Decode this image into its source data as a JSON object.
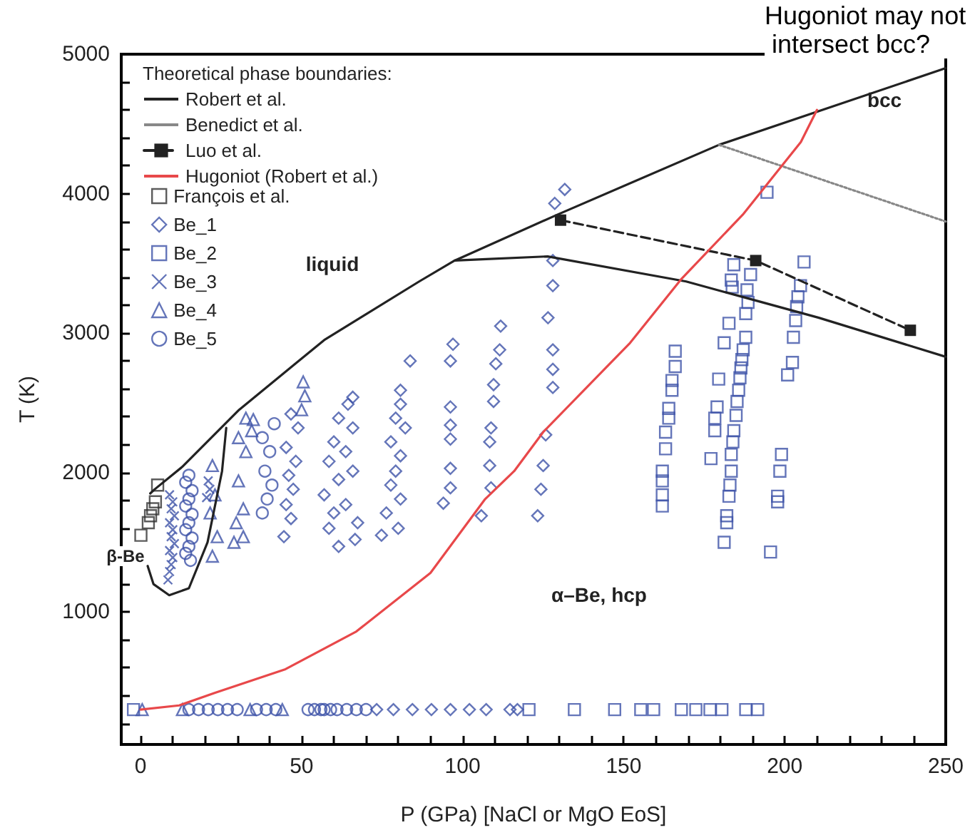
{
  "chart_data": {
    "type": "scatter",
    "xlabel": "P (GPa) [NaCl or MgO EoS]",
    "ylabel": "T (K)",
    "legend_title": "Theoretical phase boundaries:",
    "legend": "top left",
    "grid": false,
    "xlim": [
      -6,
      250
    ],
    "ylim": [
      50,
      5000
    ],
    "xticks": [
      0,
      {
        "value": 10,
        "label": null
      },
      {
        "value": 20,
        "label": null
      },
      {
        "value": 30,
        "label": null
      },
      {
        "value": 40,
        "label": null
      },
      50,
      {
        "value": 60,
        "label": null
      },
      {
        "value": 70,
        "label": null
      },
      {
        "value": 80,
        "label": null
      },
      {
        "value": 90,
        "label": null
      },
      100,
      {
        "value": 110,
        "label": null
      },
      {
        "value": 120,
        "label": null
      },
      {
        "value": 130,
        "label": null
      },
      {
        "value": 140,
        "label": null
      },
      150,
      {
        "value": 160,
        "label": null
      },
      {
        "value": 170,
        "label": null
      },
      {
        "value": 180,
        "label": null
      },
      {
        "value": 190,
        "label": null
      },
      200,
      {
        "value": 210,
        "label": null
      },
      {
        "value": 220,
        "label": null
      },
      {
        "value": 230,
        "label": null
      },
      {
        "value": 240,
        "label": null
      },
      250
    ],
    "yticks": [
      {
        "value": 200,
        "label": null
      },
      {
        "value": 400,
        "label": null
      },
      {
        "value": 600,
        "label": null
      },
      {
        "value": 800,
        "label": null
      },
      1000,
      {
        "value": 1200,
        "label": null
      },
      {
        "value": 1400,
        "label": null
      },
      {
        "value": 1600,
        "label": null
      },
      {
        "value": 1800,
        "label": null
      },
      2000,
      {
        "value": 2200,
        "label": null
      },
      {
        "value": 2400,
        "label": null
      },
      {
        "value": 2600,
        "label": null
      },
      {
        "value": 2800,
        "label": null
      },
      3000,
      {
        "value": 3200,
        "label": null
      },
      {
        "value": 3400,
        "label": null
      },
      {
        "value": 3600,
        "label": null
      },
      {
        "value": 3800,
        "label": null
      },
      4000,
      {
        "value": 4200,
        "label": null
      },
      {
        "value": 4400,
        "label": null
      },
      {
        "value": 4600,
        "label": null
      },
      {
        "value": 4800,
        "label": null
      },
      5000
    ],
    "annotations": [
      "liquid",
      "bcc",
      "α–Be, hcp",
      "β-Be",
      "Hugoniot may not intersect bcc?"
    ],
    "series": [
      {
        "name": "Robert et al.",
        "type": "line",
        "color": "#222222",
        "line_style": "solid",
        "marker": "none",
        "x": [
          3,
          4.4,
          12.9,
          30.6,
          57,
          86.5,
          97.5,
          129.5,
          179.6,
          250
        ],
        "values": [
          1850,
          1880,
          2040,
          2450,
          2950,
          3370,
          3520,
          3850,
          4350,
          4900
        ]
      },
      {
        "type": "line",
        "color": "#222222",
        "line_style": "solid",
        "marker": "none",
        "x": [
          97.5,
          107.3,
          126.4,
          169.4,
          210.6,
          250
        ],
        "values": [
          3520,
          3530,
          3550,
          3370,
          3110,
          2830
        ]
      },
      {
        "type": "line",
        "color": "#222222",
        "line_style": "solid",
        "marker": "none",
        "x": [
          26.6,
          25.3,
          20.8,
          15,
          8.9,
          4,
          2.2
        ],
        "values": [
          2320,
          2010,
          1500,
          1170,
          1120,
          1200,
          1330
        ]
      },
      {
        "name": "Benedict et al.",
        "type": "line",
        "color": "#888888",
        "line_style": "dotted",
        "marker": "none",
        "x": [
          179.6,
          250
        ],
        "values": [
          4350,
          3800
        ]
      },
      {
        "name": "Luo et al.",
        "type": "line",
        "color": "#222222",
        "line_style": "dashed",
        "marker": "square",
        "x": [
          130.4,
          191,
          239
        ],
        "values": [
          3810,
          3520,
          3020
        ]
      },
      {
        "name": "Hugoniot (Robert et al.)",
        "type": "line",
        "color": "#e8484a",
        "line_style": "solid",
        "marker": "none",
        "x": [
          0,
          12,
          23,
          45,
          67,
          90,
          107,
          116,
          125,
          152,
          168,
          187,
          205,
          210
        ],
        "values": [
          300,
          330,
          420,
          590,
          860,
          1280,
          1810,
          2010,
          2290,
          2930,
          3390,
          3850,
          4370,
          4600
        ]
      },
      {
        "name": "François et al.",
        "color": "#333333",
        "marker": "square",
        "x": [
          5.3,
          4.6,
          3.8,
          3.1,
          2.4,
          0.1
        ],
        "values": [
          1910,
          1790,
          1740,
          1690,
          1640,
          1550
        ]
      },
      {
        "name": "Be_1",
        "color": "#3d52a8",
        "marker": "diamond",
        "x": [
          131.7,
          128.6,
          128,
          128,
          126.5,
          128,
          128,
          128,
          125.8,
          125,
          124.3,
          123.3,
          111.8,
          111.5,
          110.3,
          109.6,
          109.6,
          108.8,
          108.4,
          108.4,
          108.8,
          105.8,
          97,
          96.2,
          96.2,
          96.2,
          96.2,
          96.2,
          96.2,
          94,
          83.7,
          80.7,
          80.7,
          79.2,
          82.2,
          77.7,
          80.7,
          79.2,
          77.7,
          80.7,
          76.3,
          80,
          74.8,
          64.4,
          61.5,
          65.9,
          60,
          63.7,
          58.5,
          65.9,
          61.5,
          57,
          63.7,
          60,
          67.4,
          58.5,
          61.5,
          66.6,
          65.9,
          46.7,
          48.9,
          45.2,
          48.2,
          46,
          47.4,
          45.2,
          46.7,
          44.5,
          73.3,
          78.5,
          84.4,
          90.3,
          96.2,
          102.1,
          107.3,
          114.7,
          117
        ],
        "values": [
          4030,
          3930,
          3520,
          3340,
          3110,
          2880,
          2740,
          2610,
          2270,
          2050,
          1880,
          1690,
          3050,
          2880,
          2780,
          2630,
          2510,
          2320,
          2220,
          2050,
          1890,
          1690,
          2920,
          2800,
          2470,
          2340,
          2240,
          2030,
          1890,
          1780,
          2800,
          2590,
          2490,
          2390,
          2320,
          2220,
          2120,
          2010,
          1910,
          1810,
          1710,
          1600,
          1550,
          2490,
          2390,
          2320,
          2220,
          2150,
          2080,
          2010,
          1950,
          1840,
          1770,
          1710,
          1640,
          1600,
          1470,
          1520,
          2540,
          2420,
          2320,
          2180,
          2080,
          1980,
          1880,
          1770,
          1670,
          1540,
          300,
          300,
          300,
          300,
          300,
          300,
          300,
          300,
          300
        ]
      },
      {
        "name": "Be_2",
        "color": "#3d52a8",
        "marker": "square",
        "x": [
          166,
          166,
          165,
          165,
          164,
          164,
          163,
          163,
          162,
          162,
          162,
          162,
          184.2,
          183.4,
          183.7,
          189.4,
          188.3,
          188.6,
          187.9,
          182.7,
          181.2,
          187.9,
          187.1,
          186.7,
          186.4,
          186.1,
          185.7,
          185.2,
          184.9,
          184.2,
          183.9,
          183.4,
          183.4,
          183,
          182.7,
          182,
          182,
          181.2,
          179.5,
          179,
          178.3,
          178.3,
          177.1,
          194.5,
          195.6,
          206,
          204.9,
          204.1,
          203.7,
          203.4,
          202.7,
          202.4,
          200.9,
          199,
          198.5,
          197.8,
          197.8,
          -2.2,
          120.6,
          134.7,
          147.2,
          155.3,
          159.3,
          167.9,
          172.4,
          176.8,
          180.5,
          187.9,
          191.6
        ],
        "values": [
          2870,
          2760,
          2660,
          2590,
          2460,
          2390,
          2290,
          2170,
          2010,
          1940,
          1840,
          1760,
          3490,
          3380,
          3330,
          3420,
          3310,
          3220,
          3140,
          3070,
          2930,
          2970,
          2880,
          2810,
          2750,
          2680,
          2590,
          2510,
          2410,
          2300,
          2220,
          2130,
          2010,
          1910,
          1830,
          1690,
          1640,
          1500,
          2670,
          2470,
          2390,
          2300,
          2100,
          4010,
          1430,
          3510,
          3340,
          3260,
          3190,
          3090,
          2970,
          2790,
          2700,
          2130,
          2010,
          1830,
          1790,
          300,
          300,
          300,
          300,
          300,
          300,
          300,
          300,
          300,
          300,
          300,
          300
        ]
      },
      {
        "name": "Be_3",
        "color": "#3d52a8",
        "marker": "cross",
        "x": [
          9,
          10,
          9.5,
          10.5,
          9,
          10,
          9.5,
          10.5,
          9,
          10,
          9.5,
          9,
          8.5,
          21,
          21.5,
          20.5
        ],
        "values": [
          1840,
          1790,
          1740,
          1690,
          1640,
          1590,
          1540,
          1490,
          1440,
          1390,
          1340,
          1290,
          1230,
          1940,
          1880,
          1820
        ]
      },
      {
        "name": "Be_4",
        "color": "#3d52a8",
        "marker": "triangle",
        "x": [
          32.7,
          30.4,
          32.7,
          30.4,
          31.9,
          29.7,
          29,
          31.9,
          22.3,
          23.1,
          21.6,
          23.8,
          22.3,
          50.5,
          51,
          50,
          35,
          34.5,
          0.5,
          13,
          34,
          44
        ],
        "values": [
          2390,
          2250,
          2150,
          1940,
          1740,
          1640,
          1500,
          1540,
          2050,
          1840,
          1710,
          1540,
          1400,
          2650,
          2550,
          2450,
          2380,
          2300,
          300,
          300,
          300,
          300
        ]
      },
      {
        "name": "Be_5",
        "color": "#3d52a8",
        "marker": "circle",
        "x": [
          15,
          14,
          16,
          15,
          14,
          16,
          15,
          14,
          16,
          15,
          14,
          15.5,
          41.5,
          37.8,
          40.1,
          38.6,
          40.8,
          39.3,
          37.8,
          15,
          18,
          21,
          24,
          27,
          30,
          36,
          39,
          42,
          52,
          54,
          56,
          57,
          59,
          61,
          64,
          67,
          70
        ],
        "values": [
          1980,
          1930,
          1870,
          1810,
          1760,
          1700,
          1640,
          1590,
          1530,
          1470,
          1420,
          1370,
          2350,
          2250,
          2150,
          2010,
          1910,
          1810,
          1710,
          300,
          300,
          300,
          300,
          300,
          300,
          300,
          300,
          300,
          300,
          300,
          300,
          300,
          300,
          300,
          300,
          300,
          300
        ]
      }
    ]
  }
}
